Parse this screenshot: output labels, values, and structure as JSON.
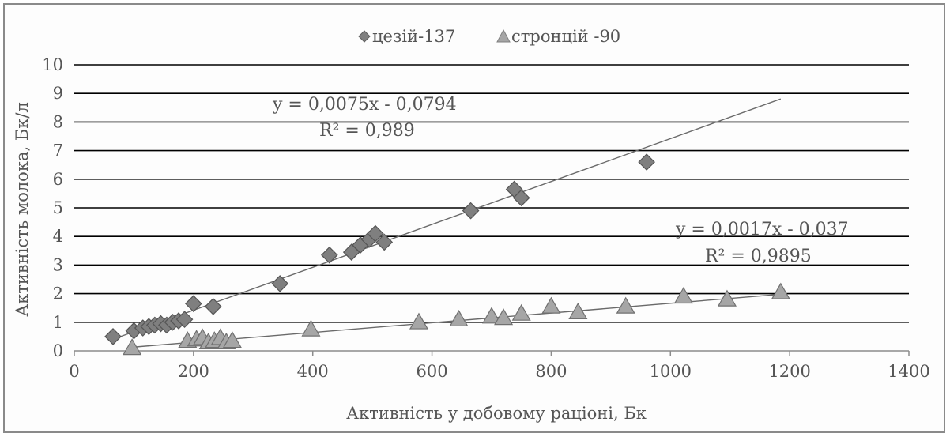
{
  "chart_data": {
    "type": "scatter",
    "xlabel": "Активність у добовому раціоні, Бк",
    "ylabel": "Активність молока, Бк/л",
    "xlim": [
      0,
      1400
    ],
    "ylim": [
      0,
      10
    ],
    "x_ticks": [
      "0",
      "200",
      "400",
      "600",
      "800",
      "1000",
      "1200",
      "1400"
    ],
    "y_ticks": [
      "0",
      "1",
      "2",
      "3",
      "4",
      "5",
      "6",
      "7",
      "8",
      "9",
      "10"
    ],
    "grid": "horizontal",
    "legend_position": "top",
    "series": [
      {
        "name": "цезій-137",
        "marker": "diamond",
        "color": "#7f7f7f",
        "points": [
          {
            "x": 65,
            "y": 0.5
          },
          {
            "x": 100,
            "y": 0.7
          },
          {
            "x": 115,
            "y": 0.8
          },
          {
            "x": 125,
            "y": 0.85
          },
          {
            "x": 135,
            "y": 0.9
          },
          {
            "x": 145,
            "y": 0.95
          },
          {
            "x": 155,
            "y": 0.9
          },
          {
            "x": 165,
            "y": 1.0
          },
          {
            "x": 175,
            "y": 1.05
          },
          {
            "x": 185,
            "y": 1.1
          },
          {
            "x": 200,
            "y": 1.65
          },
          {
            "x": 233,
            "y": 1.55
          },
          {
            "x": 345,
            "y": 2.35
          },
          {
            "x": 428,
            "y": 3.35
          },
          {
            "x": 465,
            "y": 3.45
          },
          {
            "x": 480,
            "y": 3.7
          },
          {
            "x": 495,
            "y": 3.9
          },
          {
            "x": 505,
            "y": 4.1
          },
          {
            "x": 520,
            "y": 3.8
          },
          {
            "x": 665,
            "y": 4.9
          },
          {
            "x": 738,
            "y": 5.65
          },
          {
            "x": 750,
            "y": 5.35
          },
          {
            "x": 960,
            "y": 6.6
          }
        ],
        "trendline": {
          "slope": 0.0075,
          "intercept": -0.0794,
          "x_range": [
            65,
            1185
          ]
        },
        "equation": "y = 0,0075x - 0,0794",
        "r2": "R² = 0,989"
      },
      {
        "name": "стронцій -90",
        "marker": "triangle",
        "color": "#a6a6a6",
        "points": [
          {
            "x": 97,
            "y": 0.1
          },
          {
            "x": 190,
            "y": 0.35
          },
          {
            "x": 205,
            "y": 0.4
          },
          {
            "x": 215,
            "y": 0.45
          },
          {
            "x": 225,
            "y": 0.3
          },
          {
            "x": 235,
            "y": 0.35
          },
          {
            "x": 245,
            "y": 0.45
          },
          {
            "x": 255,
            "y": 0.3
          },
          {
            "x": 265,
            "y": 0.35
          },
          {
            "x": 397,
            "y": 0.75
          },
          {
            "x": 578,
            "y": 1.0
          },
          {
            "x": 645,
            "y": 1.1
          },
          {
            "x": 700,
            "y": 1.2
          },
          {
            "x": 720,
            "y": 1.15
          },
          {
            "x": 750,
            "y": 1.3
          },
          {
            "x": 800,
            "y": 1.55
          },
          {
            "x": 845,
            "y": 1.35
          },
          {
            "x": 925,
            "y": 1.55
          },
          {
            "x": 1022,
            "y": 1.9
          },
          {
            "x": 1095,
            "y": 1.8
          },
          {
            "x": 1185,
            "y": 2.05
          }
        ],
        "trendline": {
          "slope": 0.0017,
          "intercept": -0.037,
          "x_range": [
            97,
            1185
          ]
        },
        "equation": "y = 0,0017x - 0,037",
        "r2": "R² = 0,9895"
      }
    ]
  }
}
